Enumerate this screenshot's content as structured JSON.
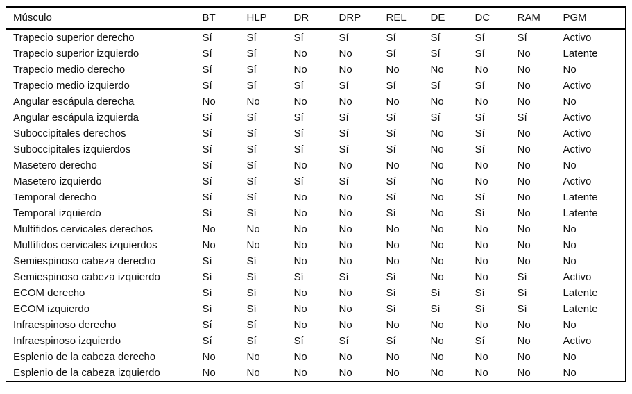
{
  "table": {
    "columns": [
      "Músculo",
      "BT",
      "HLP",
      "DR",
      "DRP",
      "REL",
      "DE",
      "DC",
      "RAM",
      "PGM"
    ],
    "rows": [
      {
        "muscle": "Trapecio superior derecho",
        "values": [
          "Sí",
          "Sí",
          "Sí",
          "Sí",
          "Sí",
          "Sí",
          "Sí",
          "Sí",
          "Activo"
        ]
      },
      {
        "muscle": "Trapecio superior izquierdo",
        "values": [
          "Sí",
          "Sí",
          "No",
          "No",
          "Sí",
          "Sí",
          "Sí",
          "No",
          "Latente"
        ]
      },
      {
        "muscle": "Trapecio medio derecho",
        "values": [
          "Sí",
          "Sí",
          "No",
          "No",
          "No",
          "No",
          "No",
          "No",
          "No"
        ]
      },
      {
        "muscle": "Trapecio medio izquierdo",
        "values": [
          "Sí",
          "Sí",
          "Sí",
          "Sí",
          "Sí",
          "Sí",
          "Sí",
          "No",
          "Activo"
        ]
      },
      {
        "muscle": "Angular escápula derecha",
        "values": [
          "No",
          "No",
          "No",
          "No",
          "No",
          "No",
          "No",
          "No",
          "No"
        ]
      },
      {
        "muscle": "Angular escápula izquierda",
        "values": [
          "Sí",
          "Sí",
          "Sí",
          "Sí",
          "Sí",
          "Sí",
          "Sí",
          "Sí",
          "Activo"
        ]
      },
      {
        "muscle": "Suboccipitales derechos",
        "values": [
          "Sí",
          "Sí",
          "Sí",
          "Sí",
          "Sí",
          "No",
          "Sí",
          "No",
          "Activo"
        ]
      },
      {
        "muscle": "Suboccipitales izquierdos",
        "values": [
          "Sí",
          "Sí",
          "Sí",
          "Sí",
          "Sí",
          "No",
          "Sí",
          "No",
          "Activo"
        ]
      },
      {
        "muscle": "Masetero derecho",
        "values": [
          "Sí",
          "Sí",
          "No",
          "No",
          "No",
          "No",
          "No",
          "No",
          "No"
        ]
      },
      {
        "muscle": "Masetero izquierdo",
        "values": [
          "Sí",
          "Sí",
          "Sí",
          "Sí",
          "Sí",
          "No",
          "No",
          "No",
          "Activo"
        ]
      },
      {
        "muscle": "Temporal derecho",
        "values": [
          "Sí",
          "Sí",
          "No",
          "No",
          "Sí",
          "No",
          "Sí",
          "No",
          "Latente"
        ]
      },
      {
        "muscle": "Temporal izquierdo",
        "values": [
          "Sí",
          "Sí",
          "No",
          "No",
          "Sí",
          "No",
          "Sí",
          "No",
          "Latente"
        ]
      },
      {
        "muscle": "Multífidos cervicales derechos",
        "values": [
          "No",
          "No",
          "No",
          "No",
          "No",
          "No",
          "No",
          "No",
          "No"
        ]
      },
      {
        "muscle": "Multífidos cervicales izquierdos",
        "values": [
          "No",
          "No",
          "No",
          "No",
          "No",
          "No",
          "No",
          "No",
          "No"
        ]
      },
      {
        "muscle": "Semiespinoso cabeza derecho",
        "values": [
          "Sí",
          "Sí",
          "No",
          "No",
          "No",
          "No",
          "No",
          "No",
          "No"
        ]
      },
      {
        "muscle": "Semiespinoso cabeza izquierdo",
        "values": [
          "Sí",
          "Sí",
          "Sí",
          "Sí",
          "Sí",
          "No",
          "No",
          "Sí",
          "Activo"
        ]
      },
      {
        "muscle": "ECOM derecho",
        "values": [
          "Sí",
          "Sí",
          "No",
          "No",
          "Sí",
          "Sí",
          "Sí",
          "Sí",
          "Latente"
        ]
      },
      {
        "muscle": "ECOM izquierdo",
        "values": [
          "Sí",
          "Sí",
          "No",
          "No",
          "Sí",
          "Sí",
          "Sí",
          "Sí",
          "Latente"
        ]
      },
      {
        "muscle": "Infraespinoso derecho",
        "values": [
          "Sí",
          "Sí",
          "No",
          "No",
          "No",
          "No",
          "No",
          "No",
          "No"
        ]
      },
      {
        "muscle": "Infraespinoso izquierdo",
        "values": [
          "Sí",
          "Sí",
          "Sí",
          "Sí",
          "Sí",
          "No",
          "Sí",
          "No",
          "Activo"
        ]
      },
      {
        "muscle": "Esplenio de la cabeza derecho",
        "values": [
          "No",
          "No",
          "No",
          "No",
          "No",
          "No",
          "No",
          "No",
          "No"
        ]
      },
      {
        "muscle": "Esplenio de la cabeza izquierdo",
        "values": [
          "No",
          "No",
          "No",
          "No",
          "No",
          "No",
          "No",
          "No",
          "No"
        ]
      }
    ],
    "colors": {
      "text": "#111111",
      "rule": "#000000",
      "background": "#ffffff"
    }
  }
}
